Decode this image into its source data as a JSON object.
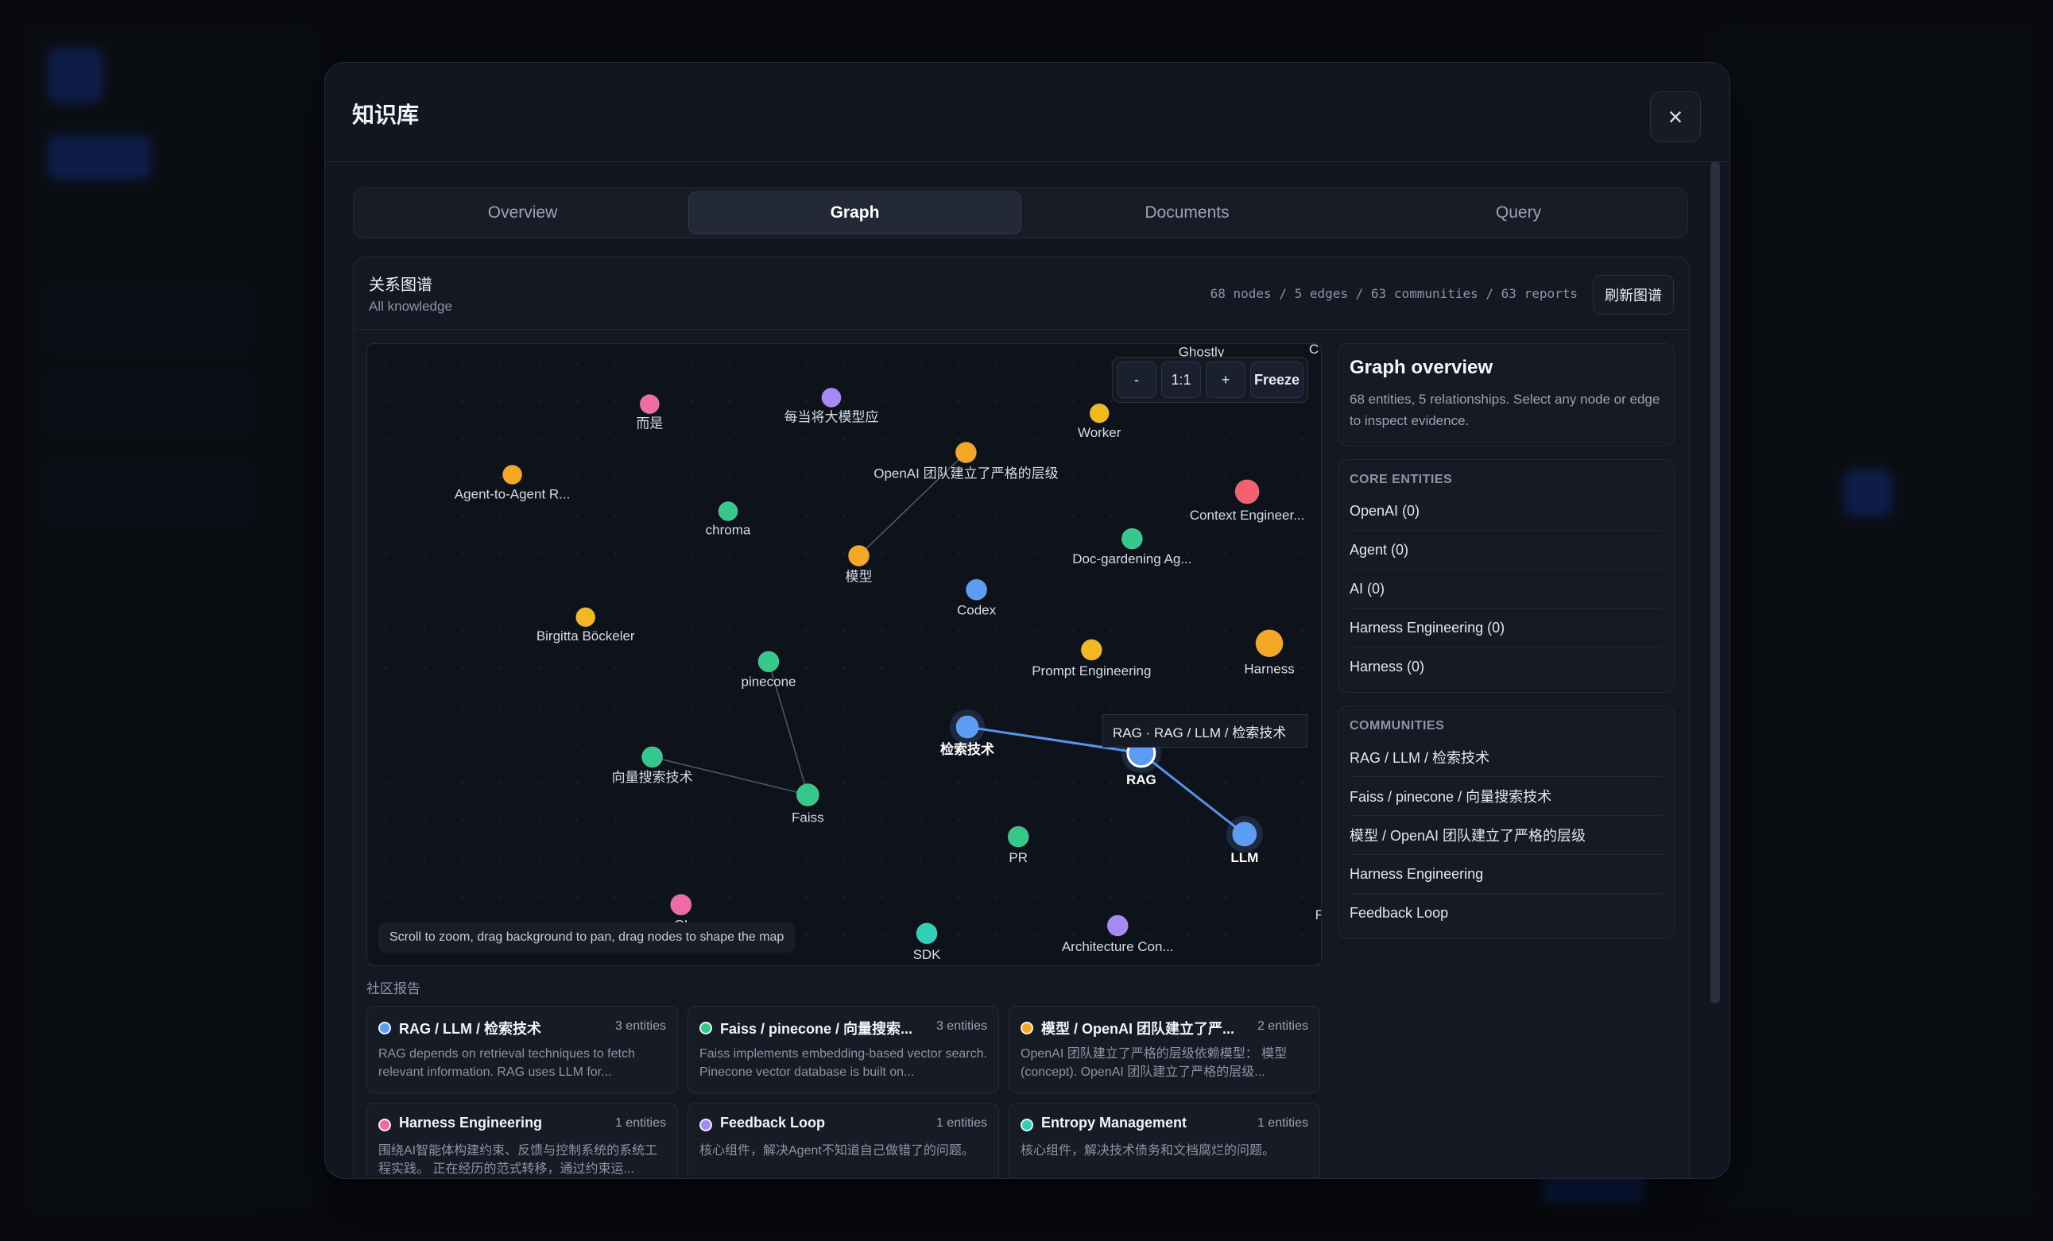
{
  "modal": {
    "title": "知识库",
    "close_symbol": "×"
  },
  "tabs": [
    {
      "label": "Overview",
      "active": false
    },
    {
      "label": "Graph",
      "active": true
    },
    {
      "label": "Documents",
      "active": false
    },
    {
      "label": "Query",
      "active": false
    }
  ],
  "panel": {
    "title": "关系图谱",
    "subtitle": "All knowledge",
    "stats": "68 nodes / 5 edges / 63 communities / 63 reports",
    "refresh_label": "刷新图谱"
  },
  "controls": {
    "zoom_out": "-",
    "reset": "1:1",
    "zoom_in": "+",
    "freeze": "Freeze"
  },
  "hint": "Scroll to zoom, drag background to pan, drag nodes to shape the map",
  "tooltip": "RAG · RAG / LLM / 检索技术",
  "colors": {
    "orange": "#f5a623",
    "green": "#34c98a",
    "blue": "#5b9cf5",
    "pink": "#f06aa5",
    "purple": "#a58af5",
    "red": "#f4606e",
    "teal": "#2fd0b7",
    "yellow": "#f2b81f",
    "edge": "#7a8596",
    "edge_selected": "#5b9cf5"
  },
  "graph": {
    "nodes": [
      {
        "id": "erzhe",
        "label": "而是",
        "color": "pink"
      },
      {
        "id": "meidang",
        "label": "每当将大模型应",
        "color": "purple"
      },
      {
        "id": "worker",
        "label": "Worker",
        "color": "yellow"
      },
      {
        "id": "a2a",
        "label": "Agent-to-Agent R...",
        "color": "orange"
      },
      {
        "id": "openai",
        "label": "OpenAI 团队建立了严格的层级",
        "color": "orange"
      },
      {
        "id": "ctx",
        "label": "Context Engineer...",
        "color": "red"
      },
      {
        "id": "chroma",
        "label": "chroma",
        "color": "green"
      },
      {
        "id": "docg",
        "label": "Doc-gardening Ag...",
        "color": "green"
      },
      {
        "id": "moxing",
        "label": "模型",
        "color": "orange"
      },
      {
        "id": "codex",
        "label": "Codex",
        "color": "blue"
      },
      {
        "id": "birgitta",
        "label": "Birgitta Böckeler",
        "color": "yellow"
      },
      {
        "id": "prompt",
        "label": "Prompt Engineering",
        "color": "yellow"
      },
      {
        "id": "harness",
        "label": "Harness",
        "color": "orange"
      },
      {
        "id": "pinecone",
        "label": "pinecone",
        "color": "green"
      },
      {
        "id": "jiansuo",
        "label": "检索技术",
        "color": "blue",
        "selected": true
      },
      {
        "id": "rag",
        "label": "RAG",
        "color": "blue",
        "selected": true
      },
      {
        "id": "xiangliang",
        "label": "向量搜索技术",
        "color": "green"
      },
      {
        "id": "faiss",
        "label": "Faiss",
        "color": "green"
      },
      {
        "id": "pr",
        "label": "PR",
        "color": "green"
      },
      {
        "id": "llm",
        "label": "LLM",
        "color": "blue",
        "selected": true
      },
      {
        "id": "ci",
        "label": "CI",
        "color": "pink"
      },
      {
        "id": "sdk",
        "label": "SDK",
        "color": "teal"
      },
      {
        "id": "arch",
        "label": "Architecture Con...",
        "color": "purple"
      },
      {
        "id": "fe",
        "label": "Fe",
        "color": "teal"
      },
      {
        "id": "c_top",
        "label": "C",
        "color": "purple"
      },
      {
        "id": "ghost",
        "label": "Ghostly",
        "color": "purple"
      }
    ],
    "edges": [
      {
        "from": "openai",
        "to": "moxing"
      },
      {
        "from": "pinecone",
        "to": "faiss"
      },
      {
        "from": "xiangliang",
        "to": "faiss"
      },
      {
        "from": "jiansuo",
        "to": "rag",
        "selected": true
      },
      {
        "from": "rag",
        "to": "llm",
        "selected": true
      }
    ]
  },
  "sidebar": {
    "overview_title": "Graph overview",
    "overview_text": "68 entities, 5 relationships. Select any node or edge to inspect evidence.",
    "core_heading": "CORE ENTITIES",
    "core_entities": [
      "OpenAI (0)",
      "Agent (0)",
      "AI (0)",
      "Harness Engineering (0)",
      "Harness (0)"
    ],
    "communities_heading": "COMMUNITIES",
    "communities": [
      "RAG / LLM / 检索技术",
      "Faiss / pinecone / 向量搜索技术",
      "模型 / OpenAI 团队建立了严格的层级",
      "Harness Engineering",
      "Feedback Loop"
    ]
  },
  "reports_title": "社区报告",
  "reports": [
    {
      "title": "RAG / LLM / 检索技术",
      "count": "3 entities",
      "color": "blue",
      "desc": "RAG depends on retrieval techniques to fetch relevant information. RAG uses LLM for..."
    },
    {
      "title": "Faiss / pinecone / 向量搜索...",
      "count": "3 entities",
      "color": "green",
      "desc": "Faiss implements embedding-based vector search. Pinecone vector database is built on..."
    },
    {
      "title": "模型 / OpenAI 团队建立了严...",
      "count": "2 entities",
      "color": "orange",
      "desc": "OpenAI 团队建立了严格的层级依赖模型： 模型 (concept). OpenAI 团队建立了严格的层级..."
    },
    {
      "title": "Harness Engineering",
      "count": "1 entities",
      "color": "pink",
      "desc": "围绕AI智能体构建约束、反馈与控制系统的系统工程实践。 正在经历的范式转移，通过约束运..."
    },
    {
      "title": "Feedback Loop",
      "count": "1 entities",
      "color": "purple",
      "desc": "核心组件，解决Agent不知道自己做错了的问题。"
    },
    {
      "title": "Entropy Management",
      "count": "1 entities",
      "color": "teal",
      "desc": "核心组件，解决技术债务和文档腐烂的问题。"
    }
  ]
}
